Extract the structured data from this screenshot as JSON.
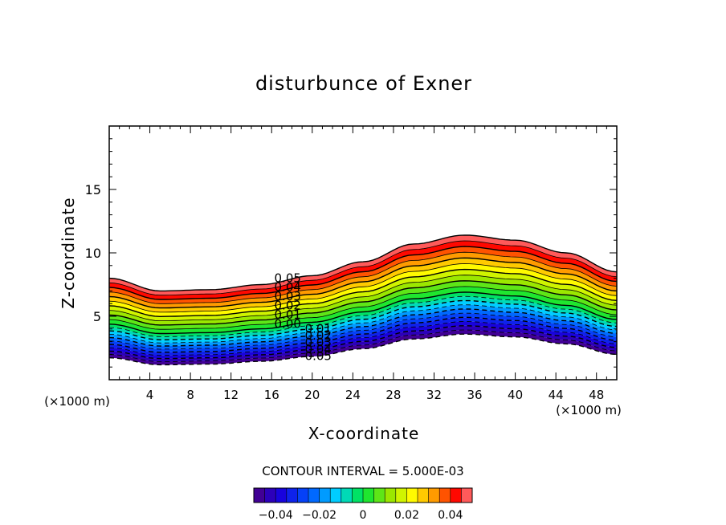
{
  "chart_data": {
    "type": "contour",
    "title": "disturbunce of Exner",
    "xlabel": "X-coordinate",
    "ylabel": "Z-coordinate",
    "x_unit_left": "(×1000 m)",
    "x_unit_right": "(×1000 m)",
    "xlim": [
      0,
      50
    ],
    "ylim": [
      0,
      20
    ],
    "xticks": [
      "4",
      "8",
      "12",
      "16",
      "20",
      "24",
      "28",
      "32",
      "36",
      "40",
      "44",
      "48"
    ],
    "yticks": [
      "5",
      "10",
      "15"
    ],
    "contour_interval_text": "CONTOUR INTERVAL = 5.000E-03",
    "contour_interval": 0.005,
    "level_min": -0.05,
    "level_max": 0.05,
    "band_base_height": [
      2,
      4.75,
      8.5
    ],
    "band_base_value": [
      -0.05,
      0.0,
      0.05
    ],
    "terrain_x": [
      0,
      5,
      10,
      15,
      20,
      25,
      30,
      35,
      40,
      45,
      50
    ],
    "terrain_shift": [
      -0.5,
      -1.5,
      -1.4,
      -1.0,
      -0.3,
      0.8,
      2.2,
      2.9,
      2.5,
      1.5,
      0.0
    ],
    "contour_labels": [
      "0.05",
      "0.04",
      "0.03",
      "0.02",
      "0.01",
      "0.00",
      "-0.01",
      "-0.02",
      "-0.03",
      "-0.04",
      "-0.05"
    ],
    "colorbar": {
      "ticks": [
        "−0.04",
        "−0.02",
        "0",
        "0.02",
        "0.04"
      ],
      "tick_values": [
        -0.04,
        -0.02,
        0,
        0.02,
        0.04
      ]
    }
  }
}
